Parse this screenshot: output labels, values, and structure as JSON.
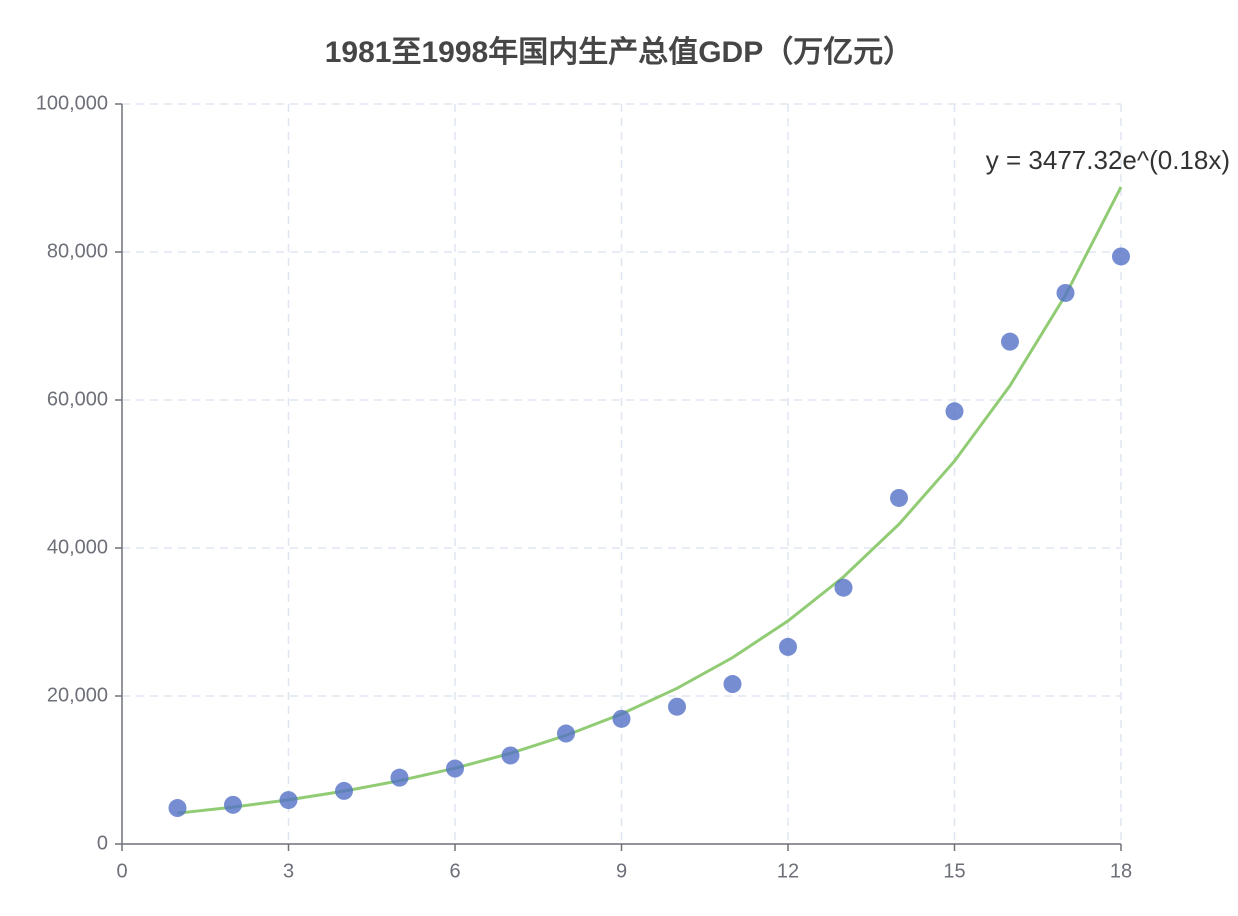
{
  "chart_data": {
    "type": "scatter",
    "title": "1981至1998年国内生产总值GDP（万亿元）",
    "x": [
      1,
      2,
      3,
      4,
      5,
      6,
      7,
      8,
      9,
      10,
      11,
      12,
      13,
      14,
      15,
      16,
      17,
      18
    ],
    "series": [
      {
        "type": "scatter",
        "color": "#5470c6",
        "values": [
          4862.4,
          5294.7,
          5934.5,
          7171.0,
          8964.4,
          10202.2,
          11962.5,
          14928.3,
          16909.2,
          18547.9,
          21617.8,
          26638.1,
          34634.4,
          46759.4,
          58478.1,
          67884.6,
          74462.6,
          79395.7
        ]
      },
      {
        "type": "line",
        "color": "#91cc75",
        "values": [
          4163,
          4984,
          5967,
          7144,
          8553,
          10240,
          12259,
          14677,
          17571,
          21036,
          25185,
          30152,
          36098,
          43219,
          51743,
          61945,
          74164,
          88790
        ],
        "label": "y = 3477.32e^(0.18x)"
      }
    ],
    "xlim": [
      0,
      18
    ],
    "xticks": [
      0,
      3,
      6,
      9,
      12,
      15,
      18
    ],
    "ylim": [
      0,
      100000
    ],
    "yticks": [
      0,
      {
        "value": 20000,
        "label": "20,000"
      },
      {
        "value": 40000,
        "label": "40,000"
      },
      {
        "value": 60000,
        "label": "60,000"
      },
      {
        "value": 80000,
        "label": "80,000"
      },
      {
        "value": 100000,
        "label": "100,000"
      }
    ],
    "grid": true
  }
}
